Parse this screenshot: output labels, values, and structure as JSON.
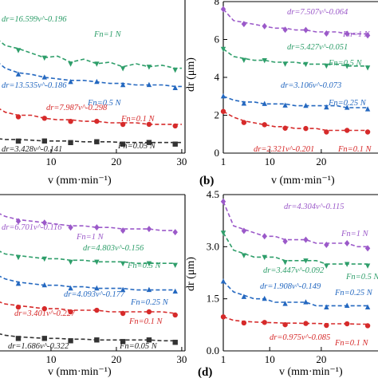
{
  "chart_data": [
    {
      "type": "scatter",
      "panel_label": "",
      "xlabel": "v (mm·min⁻¹)",
      "ylabel": "",
      "xticks": [
        "10",
        "20",
        "30"
      ],
      "yticks": [],
      "xlim": [
        0,
        30.5
      ],
      "ylim": [
        0,
        1
      ],
      "series": [
        {
          "name": "Fn=1 N",
          "color": "#2e9e6a",
          "marker": "triangle-down",
          "fit_label": "dr=16.599v^-0.196",
          "force_label": "Fn=1 N",
          "x": [
            1,
            3,
            5,
            7,
            9,
            11,
            13,
            15,
            17,
            19,
            21,
            23,
            25,
            27,
            29,
            30
          ],
          "y": [
            0.78,
            0.71,
            0.69,
            0.66,
            0.63,
            0.64,
            0.6,
            0.62,
            0.59,
            0.6,
            0.57,
            0.59,
            0.57,
            0.58,
            0.56,
            0.56
          ]
        },
        {
          "name": "Fn=0.5 N",
          "color": "#2468c0",
          "marker": "triangle-up",
          "fit_label": "dr=13.535v^-0.186",
          "force_label": "Fn=0.5 N",
          "x": [
            1,
            3,
            5,
            7,
            9,
            11,
            13,
            15,
            17,
            19,
            21,
            23,
            25,
            27,
            29,
            30
          ],
          "y": [
            0.63,
            0.56,
            0.53,
            0.52,
            0.5,
            0.49,
            0.48,
            0.48,
            0.47,
            0.46,
            0.46,
            0.45,
            0.45,
            0.45,
            0.44,
            0.44
          ]
        },
        {
          "name": "Fn=0.1 N",
          "color": "#d62a2a",
          "marker": "circle",
          "fit_label": "dr=7.987v^-0.298",
          "force_label": "Fn=0.1 N",
          "x": [
            1,
            3,
            5,
            7,
            9,
            11,
            13,
            15,
            17,
            19,
            21,
            23,
            25,
            27,
            29,
            30
          ],
          "y": [
            0.32,
            0.27,
            0.25,
            0.25,
            0.23,
            0.22,
            0.22,
            0.21,
            0.21,
            0.2,
            0.2,
            0.2,
            0.19,
            0.19,
            0.19,
            0.19
          ]
        },
        {
          "name": "Fn=0.05 N",
          "color": "#333333",
          "marker": "square",
          "fit_label": "dr=3.428v^-0.141",
          "force_label": "Fn=0.05 N",
          "x": [
            1,
            3,
            5,
            7,
            9,
            11,
            13,
            15,
            17,
            19,
            21,
            23,
            25,
            27,
            29,
            30
          ],
          "y": [
            0.1,
            0.09,
            0.09,
            0.085,
            0.08,
            0.08,
            0.08,
            0.075,
            0.075,
            0.075,
            0.07,
            0.07,
            0.07,
            0.07,
            0.07,
            0.07
          ]
        }
      ]
    },
    {
      "type": "scatter",
      "panel_label": "(b)",
      "xlabel": "v (mm·min⁻¹)",
      "ylabel": "dr (μm)",
      "xticks": [
        "1",
        "10",
        "20"
      ],
      "yticks": [
        "0",
        "2",
        "4",
        "6",
        "8"
      ],
      "xlim": [
        1,
        31
      ],
      "ylim": [
        0,
        8
      ],
      "series": [
        {
          "name": "Fn=1 N",
          "color": "#9b59c9",
          "marker": "diamond",
          "fit_label": "dr=7.507v^-0.064",
          "force_label": "Fn=1 N",
          "x": [
            1,
            3,
            5,
            7,
            9,
            11,
            13,
            15,
            17,
            19,
            21,
            23,
            25,
            27,
            29
          ],
          "y": [
            7.6,
            7.0,
            6.9,
            6.8,
            6.7,
            6.6,
            6.6,
            6.5,
            6.5,
            6.4,
            6.4,
            6.4,
            6.3,
            6.3,
            6.3
          ]
        },
        {
          "name": "Fn=0.5 N",
          "color": "#2e9e6a",
          "marker": "triangle-down",
          "fit_label": "dr=5.427v^-0.051",
          "force_label": "Fn=0.5 N",
          "x": [
            1,
            3,
            5,
            7,
            9,
            11,
            13,
            15,
            17,
            19,
            21,
            23,
            25,
            27,
            29
          ],
          "y": [
            5.5,
            5.1,
            5.0,
            4.9,
            4.9,
            4.8,
            4.8,
            4.8,
            4.7,
            4.7,
            4.7,
            4.7,
            4.6,
            4.6,
            4.6
          ]
        },
        {
          "name": "Fn=0.25 N",
          "color": "#2468c0",
          "marker": "triangle-up",
          "fit_label": "dr=3.106v^-0.073",
          "force_label": "Fn=0.25 N",
          "x": [
            1,
            3,
            5,
            7,
            9,
            11,
            13,
            15,
            17,
            19,
            21,
            23,
            25,
            27,
            29
          ],
          "y": [
            3.0,
            2.8,
            2.7,
            2.7,
            2.6,
            2.6,
            2.6,
            2.5,
            2.5,
            2.5,
            2.5,
            2.5,
            2.4,
            2.4,
            2.4
          ]
        },
        {
          "name": "Fn=0.1 N",
          "color": "#d62a2a",
          "marker": "circle",
          "fit_label": "dr=2.321v^-0.201",
          "force_label": "Fn=0.1 N",
          "x": [
            1,
            3,
            5,
            7,
            9,
            11,
            13,
            15,
            17,
            19,
            21,
            23,
            25,
            27,
            29
          ],
          "y": [
            2.2,
            1.9,
            1.7,
            1.6,
            1.5,
            1.4,
            1.4,
            1.3,
            1.3,
            1.3,
            1.2,
            1.2,
            1.2,
            1.2,
            1.2
          ]
        }
      ]
    },
    {
      "type": "scatter",
      "panel_label": "",
      "xlabel": "v (mm·min⁻¹)",
      "ylabel": "",
      "xticks": [
        "10",
        "20",
        "30"
      ],
      "yticks": [],
      "xlim": [
        0,
        30.5
      ],
      "ylim": [
        0,
        1
      ],
      "series": [
        {
          "name": "Fn=1 N",
          "color": "#9b59c9",
          "marker": "diamond",
          "fit_label": "dr=6.701v^-0.116",
          "force_label": "Fn=1 N",
          "x": [
            1,
            3,
            5,
            7,
            9,
            11,
            13,
            15,
            17,
            19,
            21,
            23,
            25,
            27,
            29
          ],
          "y": [
            0.9,
            0.86,
            0.84,
            0.83,
            0.82,
            0.81,
            0.8,
            0.8,
            0.79,
            0.79,
            0.78,
            0.78,
            0.78,
            0.77,
            0.77
          ]
        },
        {
          "name": "Fn=0.5 N",
          "color": "#2e9e6a",
          "marker": "triangle-down",
          "fit_label": "dr=4.803v^-0.156",
          "force_label": "Fn=0.5 N",
          "x": [
            1,
            3,
            5,
            7,
            9,
            11,
            13,
            15,
            17,
            19,
            21,
            23,
            25,
            27,
            29
          ],
          "y": [
            0.66,
            0.62,
            0.61,
            0.6,
            0.59,
            0.59,
            0.58,
            0.58,
            0.57,
            0.57,
            0.57,
            0.56,
            0.56,
            0.56,
            0.56
          ]
        },
        {
          "name": "Fn=0.25 N",
          "color": "#2468c0",
          "marker": "triangle-up",
          "fit_label": "dr=4.093v^-0.177",
          "force_label": "Fn=0.25 N",
          "x": [
            1,
            3,
            5,
            7,
            9,
            11,
            13,
            15,
            17,
            19,
            21,
            23,
            25,
            27,
            29
          ],
          "y": [
            0.5,
            0.46,
            0.44,
            0.43,
            0.42,
            0.42,
            0.41,
            0.41,
            0.4,
            0.4,
            0.4,
            0.39,
            0.39,
            0.39,
            0.39
          ]
        },
        {
          "name": "Fn=0.1 N",
          "color": "#d62a2a",
          "marker": "circle",
          "fit_label": "dr=3.401v^-0.227",
          "force_label": "Fn=0.1 N",
          "x": [
            1,
            3,
            5,
            7,
            9,
            11,
            13,
            15,
            17,
            19,
            21,
            23,
            25,
            27,
            29
          ],
          "y": [
            0.33,
            0.3,
            0.29,
            0.28,
            0.27,
            0.27,
            0.26,
            0.26,
            0.26,
            0.25,
            0.25,
            0.25,
            0.25,
            0.25,
            0.24
          ]
        },
        {
          "name": "Fn=0.05 N",
          "color": "#333333",
          "marker": "square",
          "fit_label": "dr=1.686v^-0.322",
          "force_label": "Fn=0.05 N",
          "x": [
            1,
            3,
            5,
            7,
            9,
            11,
            13,
            15,
            17,
            19,
            21,
            23,
            25,
            27,
            29
          ],
          "y": [
            0.12,
            0.1,
            0.09,
            0.085,
            0.08,
            0.08,
            0.075,
            0.075,
            0.07,
            0.07,
            0.07,
            0.07,
            0.07,
            0.065,
            0.065
          ]
        }
      ]
    },
    {
      "type": "scatter",
      "panel_label": "(d)",
      "xlabel": "v (mm·min⁻¹)",
      "ylabel": "dr (μm)",
      "xticks": [
        "1",
        "10",
        "20"
      ],
      "yticks": [
        "0.0",
        "1.5",
        "3.0",
        "4.5"
      ],
      "xlim": [
        1,
        31
      ],
      "ylim": [
        0,
        4.5
      ],
      "series": [
        {
          "name": "Fn=1 N",
          "color": "#9b59c9",
          "marker": "diamond",
          "fit_label": "dr=4.304v^-0.115",
          "force_label": "Fn=1 N",
          "x": [
            1,
            3,
            5,
            7,
            9,
            11,
            13,
            15,
            17,
            19,
            21,
            23,
            25,
            27,
            29
          ],
          "y": [
            4.3,
            3.6,
            3.5,
            3.4,
            3.3,
            3.3,
            3.2,
            3.2,
            3.2,
            3.1,
            3.1,
            3.1,
            3.1,
            3.0,
            3.0
          ]
        },
        {
          "name": "Fn=0.5 N",
          "color": "#2e9e6a",
          "marker": "triangle-down",
          "fit_label": "dr=3.447v^-0.092",
          "force_label": "Fn=0.5 N",
          "x": [
            1,
            3,
            5,
            7,
            9,
            11,
            13,
            15,
            17,
            19,
            21,
            23,
            25,
            27,
            29
          ],
          "y": [
            3.4,
            2.9,
            2.8,
            2.7,
            2.7,
            2.7,
            2.6,
            2.6,
            2.6,
            2.6,
            2.5,
            2.5,
            2.5,
            2.5,
            2.5
          ]
        },
        {
          "name": "Fn=0.25 N",
          "color": "#2468c0",
          "marker": "triangle-up",
          "fit_label": "dr=1.908v^-0.149",
          "force_label": "Fn=0.25 N",
          "x": [
            1,
            3,
            5,
            7,
            9,
            11,
            13,
            15,
            17,
            19,
            21,
            23,
            25,
            27,
            29
          ],
          "y": [
            2.0,
            1.7,
            1.6,
            1.5,
            1.5,
            1.4,
            1.4,
            1.4,
            1.4,
            1.3,
            1.3,
            1.3,
            1.3,
            1.3,
            1.3
          ]
        },
        {
          "name": "Fn=0.1 N",
          "color": "#d62a2a",
          "marker": "circle",
          "fit_label": "dr=0.975v^-0.085",
          "force_label": "Fn=0.1 N",
          "x": [
            1,
            3,
            5,
            7,
            9,
            11,
            13,
            15,
            17,
            19,
            21,
            23,
            25,
            27,
            29
          ],
          "y": [
            0.98,
            0.88,
            0.85,
            0.83,
            0.82,
            0.81,
            0.8,
            0.8,
            0.79,
            0.79,
            0.78,
            0.78,
            0.78,
            0.77,
            0.77
          ]
        }
      ]
    }
  ]
}
